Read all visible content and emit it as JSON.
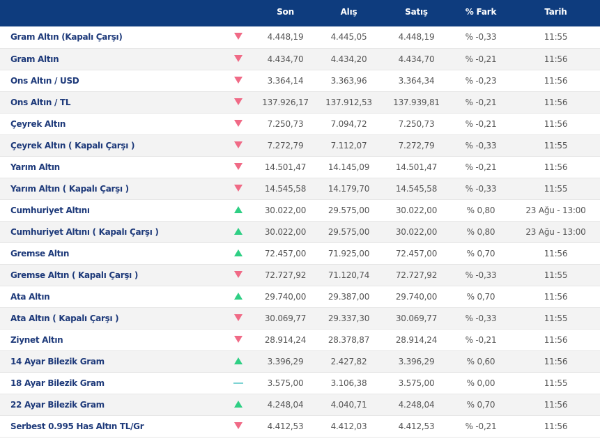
{
  "colors": {
    "header_bg": "#0e3c7e",
    "down": "#f06a86",
    "up": "#2fcf84",
    "flat": "#7ed3d3",
    "name_text": "#1e3a7a"
  },
  "headers": {
    "son": "Son",
    "alis": "Alış",
    "satis": "Satış",
    "fark": "% Fark",
    "tarih": "Tarih"
  },
  "rows": [
    {
      "name": "Gram Altın (Kapalı Çarşı)",
      "trend": "down",
      "son": "4.448,19",
      "alis": "4.445,05",
      "satis": "4.448,19",
      "fark": "% -0,33",
      "tarih": "11:55"
    },
    {
      "name": "Gram Altın",
      "trend": "down",
      "son": "4.434,70",
      "alis": "4.434,20",
      "satis": "4.434,70",
      "fark": "% -0,21",
      "tarih": "11:56"
    },
    {
      "name": "Ons Altın / USD",
      "trend": "down",
      "son": "3.364,14",
      "alis": "3.363,96",
      "satis": "3.364,34",
      "fark": "% -0,23",
      "tarih": "11:56"
    },
    {
      "name": "Ons Altın / TL",
      "trend": "down",
      "son": "137.926,17",
      "alis": "137.912,53",
      "satis": "137.939,81",
      "fark": "% -0,21",
      "tarih": "11:56"
    },
    {
      "name": "Çeyrek Altın",
      "trend": "down",
      "son": "7.250,73",
      "alis": "7.094,72",
      "satis": "7.250,73",
      "fark": "% -0,21",
      "tarih": "11:56"
    },
    {
      "name": "Çeyrek Altın ( Kapalı Çarşı )",
      "trend": "down",
      "son": "7.272,79",
      "alis": "7.112,07",
      "satis": "7.272,79",
      "fark": "% -0,33",
      "tarih": "11:55"
    },
    {
      "name": "Yarım Altın",
      "trend": "down",
      "son": "14.501,47",
      "alis": "14.145,09",
      "satis": "14.501,47",
      "fark": "% -0,21",
      "tarih": "11:56"
    },
    {
      "name": "Yarım Altın ( Kapalı Çarşı )",
      "trend": "down",
      "son": "14.545,58",
      "alis": "14.179,70",
      "satis": "14.545,58",
      "fark": "% -0,33",
      "tarih": "11:55"
    },
    {
      "name": "Cumhuriyet Altını",
      "trend": "up",
      "son": "30.022,00",
      "alis": "29.575,00",
      "satis": "30.022,00",
      "fark": "% 0,80",
      "tarih": "23 Ağu - 13:00"
    },
    {
      "name": "Cumhuriyet Altını ( Kapalı Çarşı )",
      "trend": "up",
      "son": "30.022,00",
      "alis": "29.575,00",
      "satis": "30.022,00",
      "fark": "% 0,80",
      "tarih": "23 Ağu - 13:00"
    },
    {
      "name": "Gremse Altın",
      "trend": "up",
      "son": "72.457,00",
      "alis": "71.925,00",
      "satis": "72.457,00",
      "fark": "% 0,70",
      "tarih": "11:56"
    },
    {
      "name": "Gremse Altın ( Kapalı Çarşı )",
      "trend": "down",
      "son": "72.727,92",
      "alis": "71.120,74",
      "satis": "72.727,92",
      "fark": "% -0,33",
      "tarih": "11:55"
    },
    {
      "name": "Ata Altın",
      "trend": "up",
      "son": "29.740,00",
      "alis": "29.387,00",
      "satis": "29.740,00",
      "fark": "% 0,70",
      "tarih": "11:56"
    },
    {
      "name": "Ata Altın ( Kapalı Çarşı )",
      "trend": "down",
      "son": "30.069,77",
      "alis": "29.337,30",
      "satis": "30.069,77",
      "fark": "% -0,33",
      "tarih": "11:55"
    },
    {
      "name": "Ziynet Altın",
      "trend": "down",
      "son": "28.914,24",
      "alis": "28.378,87",
      "satis": "28.914,24",
      "fark": "% -0,21",
      "tarih": "11:56"
    },
    {
      "name": "14 Ayar Bilezik Gram",
      "trend": "up",
      "son": "3.396,29",
      "alis": "2.427,82",
      "satis": "3.396,29",
      "fark": "% 0,60",
      "tarih": "11:56"
    },
    {
      "name": "18 Ayar Bilezik Gram",
      "trend": "flat",
      "son": "3.575,00",
      "alis": "3.106,38",
      "satis": "3.575,00",
      "fark": "% 0,00",
      "tarih": "11:55"
    },
    {
      "name": "22 Ayar Bilezik Gram",
      "trend": "up",
      "son": "4.248,04",
      "alis": "4.040,71",
      "satis": "4.248,04",
      "fark": "% 0,70",
      "tarih": "11:56"
    },
    {
      "name": "Serbest 0.995 Has Altın TL/Gr",
      "trend": "down",
      "son": "4.412,53",
      "alis": "4.412,03",
      "satis": "4.412,53",
      "fark": "% -0,21",
      "tarih": "11:56"
    }
  ]
}
